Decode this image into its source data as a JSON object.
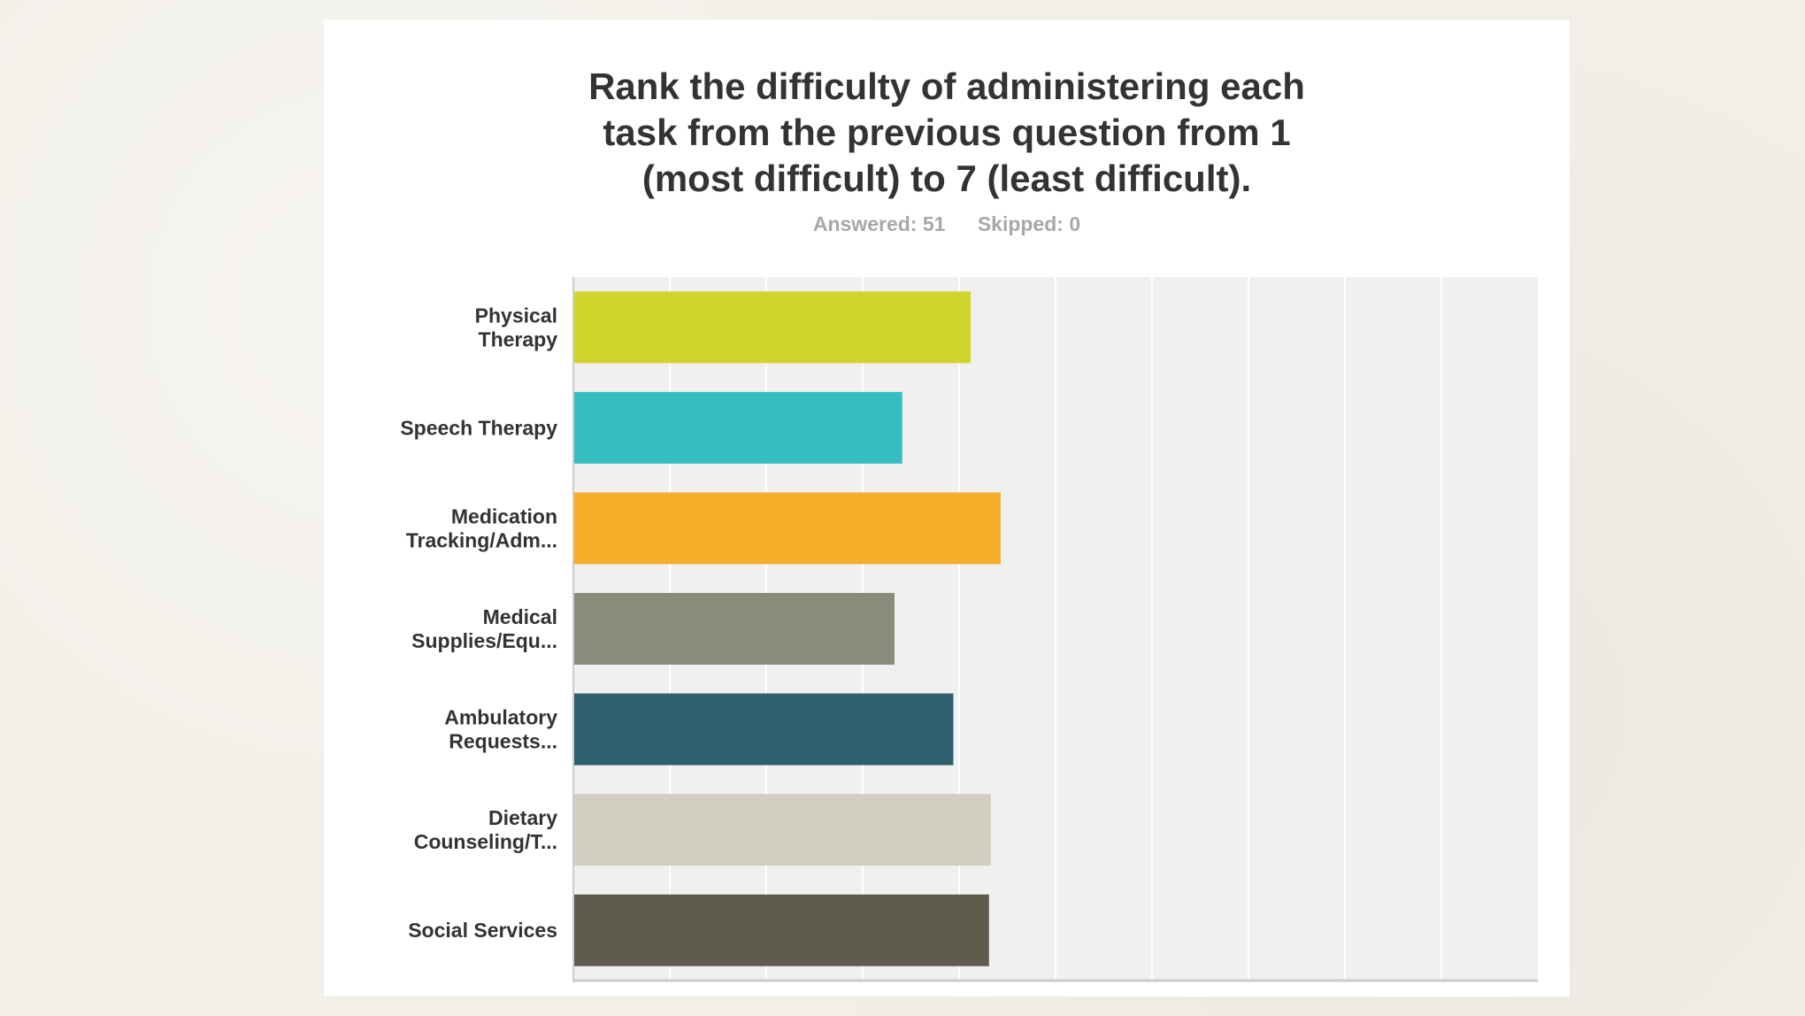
{
  "chart_data": {
    "type": "bar",
    "orientation": "horizontal",
    "title": "Rank the difficulty of administering each\ntask from the previous question from 1\n(most difficult) to 7 (least difficult).",
    "summary": {
      "answered": "Answered: 51",
      "skipped": "Skipped: 0"
    },
    "categories": [
      [
        "Physical",
        "Therapy"
      ],
      [
        "Speech Therapy"
      ],
      [
        "Medication",
        "Tracking/Adm..."
      ],
      [
        "Medical",
        "Supplies/Equ..."
      ],
      [
        "Ambulatory",
        "Requests..."
      ],
      [
        "Dietary",
        "Counseling/T..."
      ],
      [
        "Social Services"
      ]
    ],
    "values": [
      4.12,
      3.41,
      4.43,
      3.33,
      3.94,
      4.33,
      4.31
    ],
    "colors": [
      "#cfd52d",
      "#34bec0",
      "#f4ad29",
      "#8a8b79",
      "#2f5f6d",
      "#d0cfc1",
      "#5e5c4c"
    ],
    "xlim": [
      0,
      10
    ],
    "grid": true,
    "legend": "none",
    "xlabel": "",
    "ylabel": ""
  }
}
